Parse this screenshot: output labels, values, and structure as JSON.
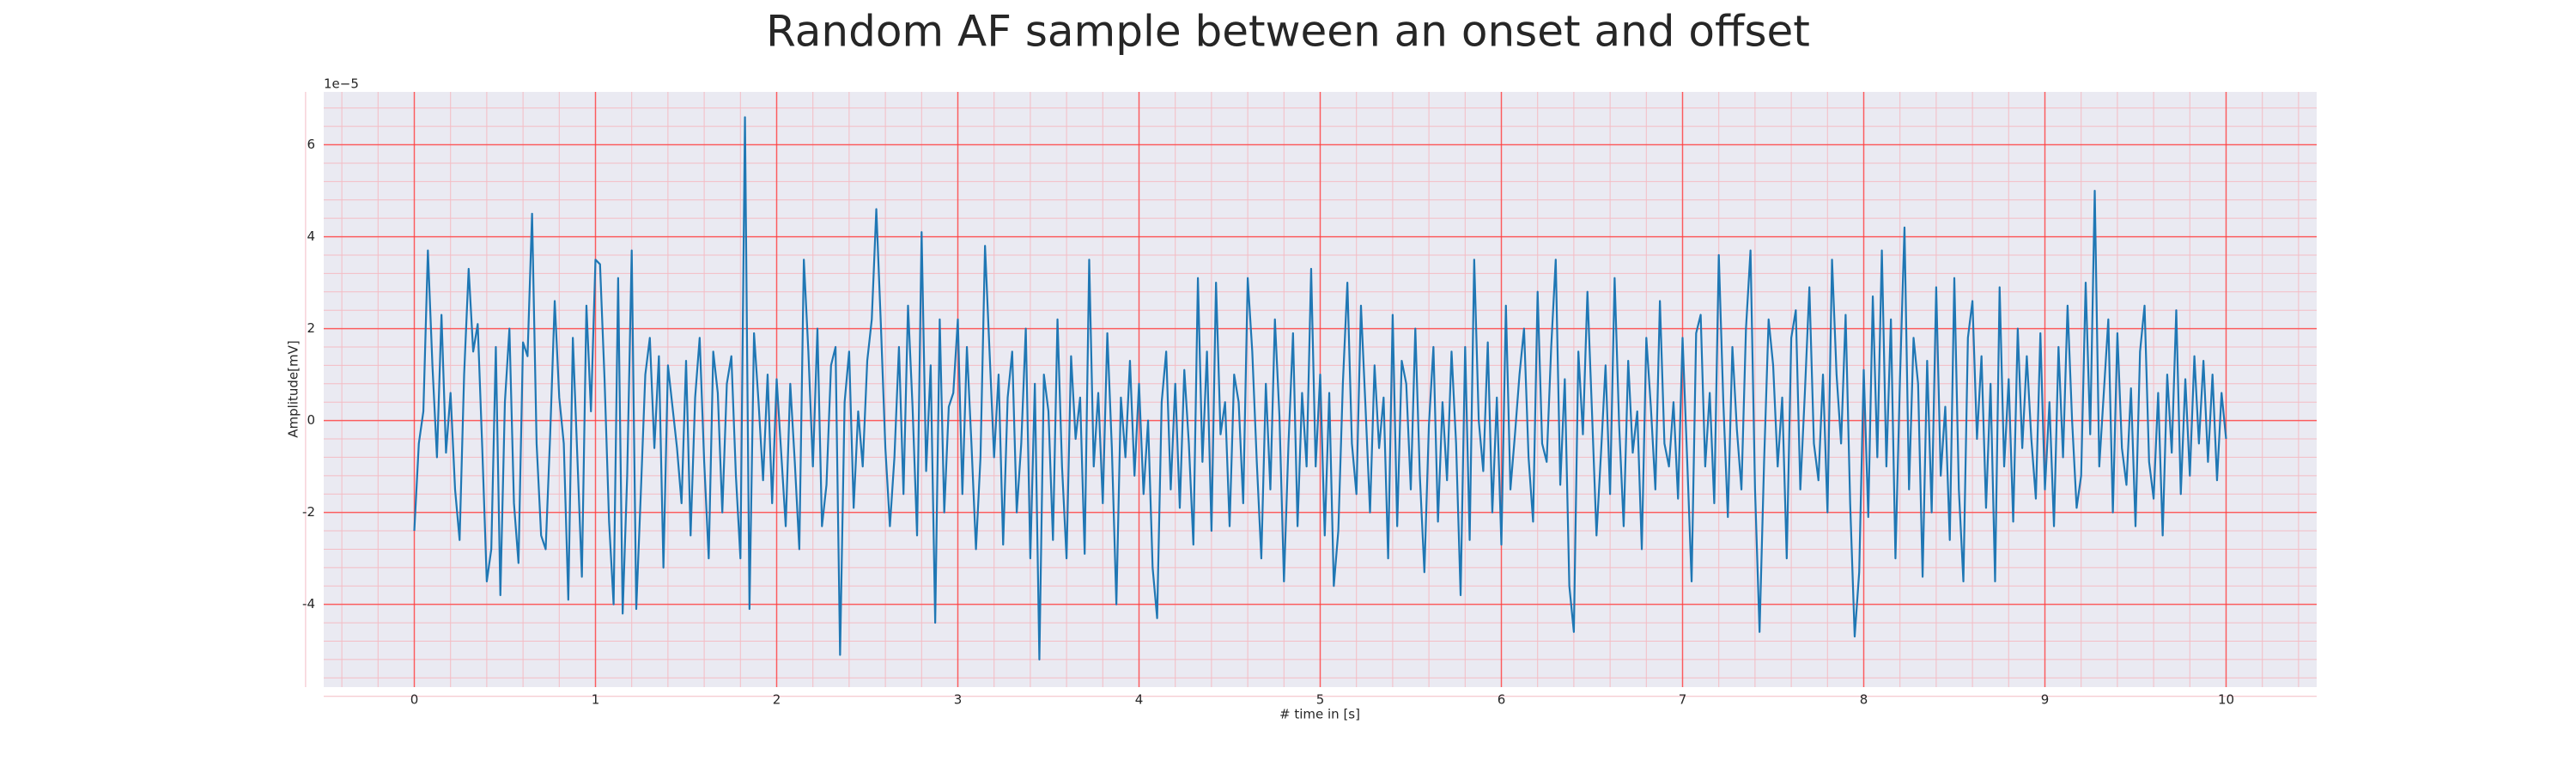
{
  "chart_data": {
    "type": "line",
    "title": "Random AF sample between an onset and offset",
    "xlabel": "# time in [s]",
    "ylabel": "Amplitude[mV]",
    "y_offset_label": "1e−5",
    "xlim": [
      -0.5,
      10.5
    ],
    "ylim": [
      -5.8,
      7.15
    ],
    "xticks": [
      0,
      1,
      2,
      3,
      4,
      5,
      6,
      7,
      8,
      9,
      10
    ],
    "yticks": [
      -4,
      -2,
      0,
      2,
      4,
      6
    ],
    "grid": true,
    "grid_color": "#ff3b3b",
    "minor_grid": true,
    "minor_grid_color": "#f4bcc4",
    "minor_divisions": 5,
    "background": "#eaeaf2",
    "x": [
      0,
      0.025,
      0.05,
      0.075,
      0.1,
      0.125,
      0.15,
      0.175,
      0.2,
      0.225,
      0.25,
      0.275,
      0.3,
      0.325,
      0.35,
      0.375,
      0.4,
      0.425,
      0.45,
      0.475,
      0.5,
      0.525,
      0.55,
      0.575,
      0.6,
      0.625,
      0.65,
      0.675,
      0.7,
      0.725,
      0.75,
      0.775,
      0.8,
      0.825,
      0.85,
      0.875,
      0.9,
      0.925,
      0.95,
      0.975,
      1,
      1.025,
      1.05,
      1.075,
      1.1,
      1.125,
      1.15,
      1.175,
      1.2,
      1.225,
      1.25,
      1.275,
      1.3,
      1.325,
      1.35,
      1.375,
      1.4,
      1.425,
      1.45,
      1.475,
      1.5,
      1.525,
      1.55,
      1.575,
      1.6,
      1.625,
      1.65,
      1.675,
      1.7,
      1.725,
      1.75,
      1.775,
      1.8,
      1.825,
      1.85,
      1.875,
      1.9,
      1.925,
      1.95,
      1.975,
      2,
      2.025,
      2.05,
      2.075,
      2.1,
      2.125,
      2.15,
      2.175,
      2.2,
      2.225,
      2.25,
      2.275,
      2.3,
      2.325,
      2.35,
      2.375,
      2.4,
      2.425,
      2.45,
      2.475,
      2.5,
      2.525,
      2.55,
      2.575,
      2.6,
      2.625,
      2.65,
      2.675,
      2.7,
      2.725,
      2.75,
      2.775,
      2.8,
      2.825,
      2.85,
      2.875,
      2.9,
      2.925,
      2.95,
      2.975,
      3,
      3.025,
      3.05,
      3.075,
      3.1,
      3.125,
      3.15,
      3.175,
      3.2,
      3.225,
      3.25,
      3.275,
      3.3,
      3.325,
      3.35,
      3.375,
      3.4,
      3.425,
      3.45,
      3.475,
      3.5,
      3.525,
      3.55,
      3.575,
      3.6,
      3.625,
      3.65,
      3.675,
      3.7,
      3.725,
      3.75,
      3.775,
      3.8,
      3.825,
      3.85,
      3.875,
      3.9,
      3.925,
      3.95,
      3.975,
      4,
      4.025,
      4.05,
      4.075,
      4.1,
      4.125,
      4.15,
      4.175,
      4.2,
      4.225,
      4.25,
      4.275,
      4.3,
      4.325,
      4.35,
      4.375,
      4.4,
      4.425,
      4.45,
      4.475,
      4.5,
      4.525,
      4.55,
      4.575,
      4.6,
      4.625,
      4.65,
      4.675,
      4.7,
      4.725,
      4.75,
      4.775,
      4.8,
      4.825,
      4.85,
      4.875,
      4.9,
      4.925,
      4.95,
      4.975,
      5,
      5.025,
      5.05,
      5.075,
      5.1,
      5.125,
      5.15,
      5.175,
      5.2,
      5.225,
      5.25,
      5.275,
      5.3,
      5.325,
      5.35,
      5.375,
      5.4,
      5.425,
      5.45,
      5.475,
      5.5,
      5.525,
      5.55,
      5.575,
      5.6,
      5.625,
      5.65,
      5.675,
      5.7,
      5.725,
      5.75,
      5.775,
      5.8,
      5.825,
      5.85,
      5.875,
      5.9,
      5.925,
      5.95,
      5.975,
      6,
      6.025,
      6.05,
      6.075,
      6.1,
      6.125,
      6.15,
      6.175,
      6.2,
      6.225,
      6.25,
      6.275,
      6.3,
      6.325,
      6.35,
      6.375,
      6.4,
      6.425,
      6.45,
      6.475,
      6.5,
      6.525,
      6.55,
      6.575,
      6.6,
      6.625,
      6.65,
      6.675,
      6.7,
      6.725,
      6.75,
      6.775,
      6.8,
      6.825,
      6.85,
      6.875,
      6.9,
      6.925,
      6.95,
      6.975,
      7,
      7.025,
      7.05,
      7.075,
      7.1,
      7.125,
      7.15,
      7.175,
      7.2,
      7.225,
      7.25,
      7.275,
      7.3,
      7.325,
      7.35,
      7.375,
      7.4,
      7.425,
      7.45,
      7.475,
      7.5,
      7.525,
      7.55,
      7.575,
      7.6,
      7.625,
      7.65,
      7.675,
      7.7,
      7.725,
      7.75,
      7.775,
      7.8,
      7.825,
      7.85,
      7.875,
      7.9,
      7.925,
      7.95,
      7.975,
      8,
      8.025,
      8.05,
      8.075,
      8.1,
      8.125,
      8.15,
      8.175,
      8.2,
      8.225,
      8.25,
      8.275,
      8.3,
      8.325,
      8.35,
      8.375,
      8.4,
      8.425,
      8.45,
      8.475,
      8.5,
      8.525,
      8.55,
      8.575,
      8.6,
      8.625,
      8.65,
      8.675,
      8.7,
      8.725,
      8.75,
      8.775,
      8.8,
      8.825,
      8.85,
      8.875,
      8.9,
      8.925,
      8.95,
      8.975,
      9,
      9.025,
      9.05,
      9.075,
      9.1,
      9.125,
      9.15,
      9.175,
      9.2,
      9.225,
      9.25,
      9.275,
      9.3,
      9.325,
      9.35,
      9.375,
      9.4,
      9.425,
      9.45,
      9.475,
      9.5,
      9.525,
      9.55,
      9.575,
      9.6,
      9.625,
      9.65,
      9.675,
      9.7,
      9.725,
      9.75,
      9.775,
      9.8,
      9.825,
      9.85,
      9.875,
      9.9,
      9.925,
      9.95,
      9.975,
      10
    ],
    "series": [
      {
        "color": "#1f77b4",
        "values": [
          -2.4,
          -0.5,
          0.2,
          3.7,
          1.2,
          -0.8,
          2.3,
          -0.7,
          0.6,
          -1.5,
          -2.6,
          1.0,
          3.3,
          1.5,
          2.1,
          -0.6,
          -3.5,
          -2.8,
          1.6,
          -3.8,
          0.4,
          2.0,
          -1.8,
          -3.1,
          1.7,
          1.4,
          4.5,
          -0.5,
          -2.5,
          -2.8,
          -0.3,
          2.6,
          0.5,
          -0.5,
          -3.9,
          1.8,
          -0.8,
          -3.4,
          2.5,
          0.2,
          3.5,
          3.4,
          0.9,
          -2.2,
          -4.0,
          3.1,
          -4.2,
          -1.2,
          3.7,
          -4.1,
          -1.6,
          1.0,
          1.8,
          -0.6,
          1.4,
          -3.2,
          1.2,
          0.3,
          -0.6,
          -1.8,
          1.3,
          -2.5,
          0.5,
          1.8,
          -0.9,
          -3.0,
          1.5,
          0.6,
          -2.0,
          0.8,
          1.4,
          -1.2,
          -3.0,
          6.6,
          -4.1,
          1.9,
          0.4,
          -1.3,
          1.0,
          -1.8,
          0.9,
          -0.7,
          -2.3,
          0.8,
          -0.9,
          -2.8,
          3.5,
          1.5,
          -1.0,
          2.0,
          -2.3,
          -1.4,
          1.2,
          1.6,
          -5.1,
          0.4,
          1.5,
          -1.9,
          0.2,
          -1.0,
          1.3,
          2.2,
          4.6,
          2.1,
          -0.6,
          -2.3,
          -0.8,
          1.6,
          -1.6,
          2.5,
          0.3,
          -2.5,
          4.1,
          -1.1,
          1.2,
          -4.4,
          2.2,
          -2.0,
          0.3,
          0.6,
          2.2,
          -1.6,
          1.6,
          -0.5,
          -2.8,
          -0.8,
          3.8,
          1.5,
          -0.8,
          1.0,
          -2.7,
          0.5,
          1.5,
          -2.0,
          -0.5,
          2.0,
          -3.0,
          0.8,
          -5.2,
          1.0,
          0.2,
          -2.6,
          2.2,
          -1.0,
          -3.0,
          1.4,
          -0.4,
          0.5,
          -2.9,
          3.5,
          -1.0,
          0.6,
          -1.8,
          1.9,
          -0.6,
          -4.0,
          0.5,
          -0.8,
          1.3,
          -1.2,
          0.8,
          -1.6,
          0.0,
          -3.2,
          -4.3,
          0.4,
          1.5,
          -1.5,
          0.8,
          -1.9,
          1.1,
          -0.5,
          -2.7,
          3.1,
          -0.9,
          1.5,
          -2.4,
          3.0,
          -0.3,
          0.4,
          -2.3,
          1.0,
          0.4,
          -1.8,
          3.1,
          1.5,
          -0.9,
          -3.0,
          0.8,
          -1.5,
          2.2,
          0.1,
          -3.5,
          -0.5,
          1.9,
          -2.3,
          0.6,
          -1.0,
          3.3,
          -1.0,
          1.0,
          -2.5,
          0.6,
          -3.6,
          -2.4,
          0.8,
          3.0,
          -0.5,
          -1.6,
          2.5,
          0.3,
          -2.0,
          1.2,
          -0.6,
          0.5,
          -3.0,
          2.3,
          -2.3,
          1.3,
          0.8,
          -1.5,
          2.0,
          -1.2,
          -3.3,
          -0.1,
          1.6,
          -2.2,
          0.4,
          -1.3,
          1.5,
          -0.5,
          -3.8,
          1.6,
          -2.6,
          3.5,
          0.0,
          -1.1,
          1.7,
          -2.0,
          0.5,
          -2.7,
          2.5,
          -1.5,
          -0.3,
          1.0,
          2.0,
          -0.8,
          -2.2,
          2.8,
          -0.5,
          -0.9,
          1.6,
          3.5,
          -1.4,
          0.9,
          -3.6,
          -4.6,
          1.5,
          -0.3,
          2.8,
          0.2,
          -2.5,
          -0.7,
          1.2,
          -1.6,
          3.1,
          -0.1,
          -2.3,
          1.3,
          -0.7,
          0.2,
          -2.8,
          1.8,
          0.3,
          -1.5,
          2.6,
          -0.5,
          -1.0,
          0.4,
          -1.7,
          1.8,
          -0.8,
          -3.5,
          1.9,
          2.3,
          -1.0,
          0.6,
          -1.8,
          3.6,
          0.4,
          -2.1,
          1.6,
          -0.2,
          -1.5,
          2.0,
          3.7,
          -1.5,
          -4.6,
          -0.9,
          2.2,
          1.2,
          -1.0,
          0.5,
          -3.0,
          1.8,
          2.4,
          -1.5,
          0.6,
          2.9,
          -0.5,
          -1.3,
          1.0,
          -2.0,
          3.5,
          1.0,
          -0.5,
          2.3,
          -1.8,
          -4.7,
          -3.3,
          1.1,
          -2.1,
          2.7,
          -0.8,
          3.7,
          -1.0,
          2.2,
          -3.0,
          0.9,
          4.2,
          -1.5,
          1.8,
          0.8,
          -3.4,
          1.3,
          -2.0,
          2.9,
          -1.2,
          0.3,
          -2.6,
          3.1,
          -1.5,
          -3.5,
          1.8,
          2.6,
          -0.4,
          1.4,
          -1.9,
          0.8,
          -3.5,
          2.9,
          -1.0,
          0.9,
          -2.2,
          2.0,
          -0.6,
          1.4,
          -0.4,
          -1.7,
          1.9,
          -1.5,
          0.4,
          -2.3,
          1.6,
          -0.8,
          2.5,
          0.0,
          -1.9,
          -1.2,
          3.0,
          -0.3,
          5.0,
          -1.0,
          0.6,
          2.2,
          -2.0,
          1.9,
          -0.6,
          -1.4,
          0.7,
          -2.3,
          1.5,
          2.5,
          -0.9,
          -1.7,
          0.6,
          -2.5,
          1.0,
          -0.7,
          2.4,
          -1.6,
          0.9,
          -1.2,
          1.4,
          -0.5,
          1.3,
          -0.9,
          1.0,
          -1.3,
          0.6,
          -0.4
        ]
      }
    ]
  }
}
